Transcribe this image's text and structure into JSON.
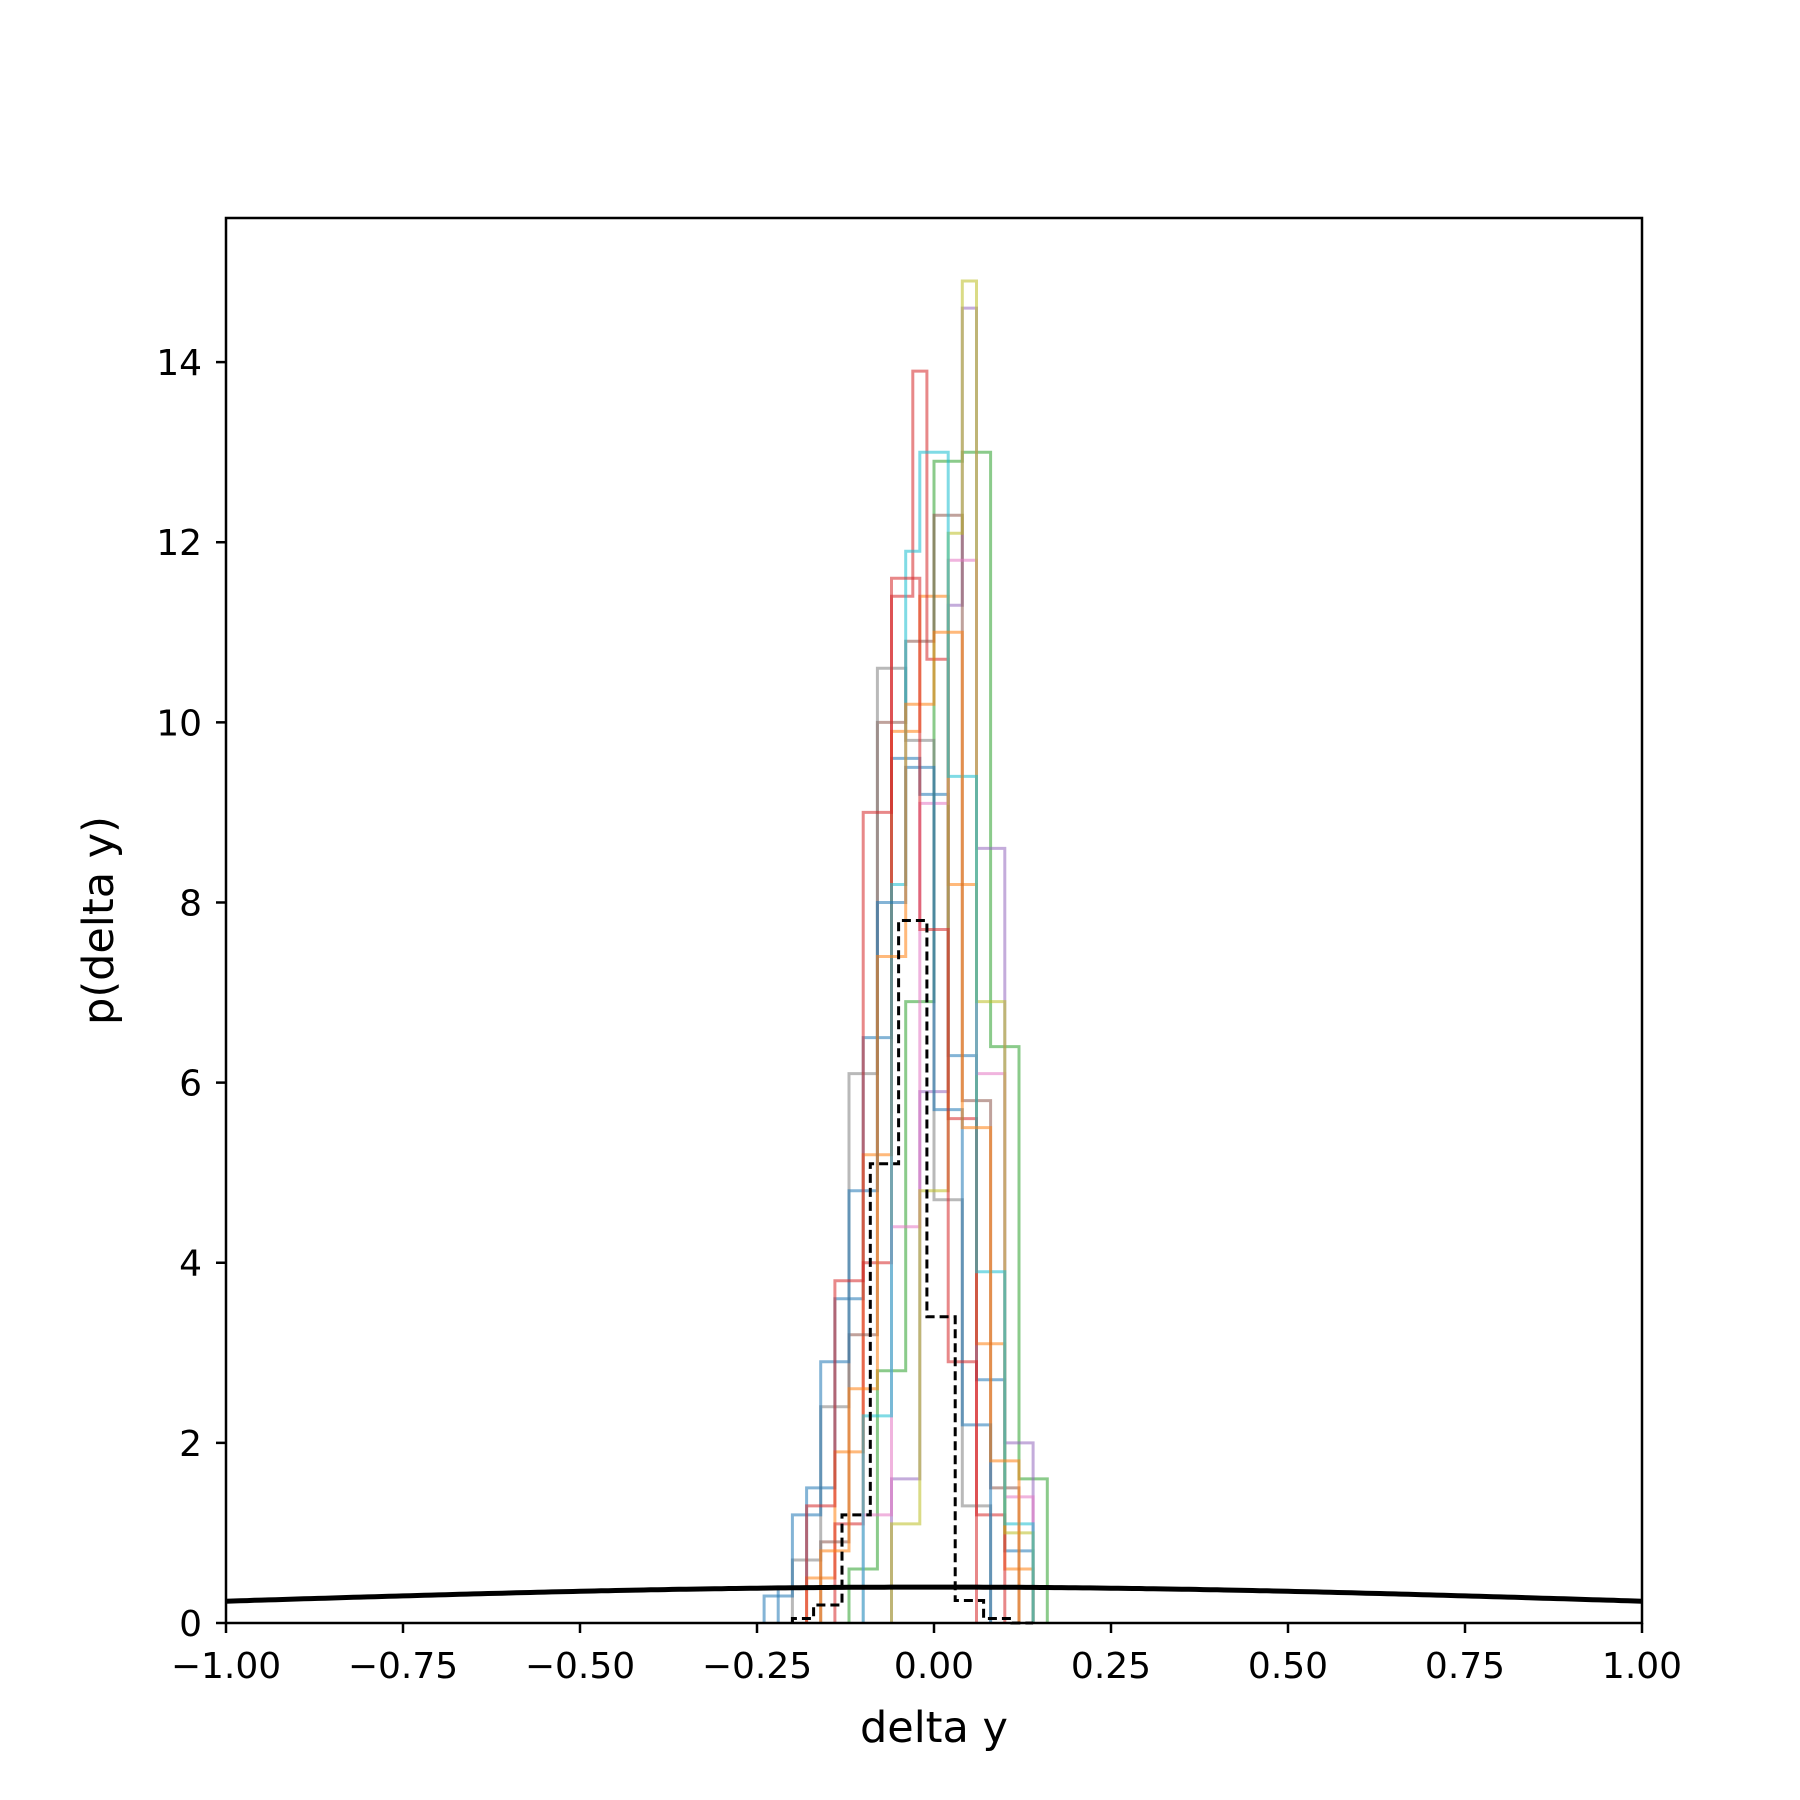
{
  "chart_data": {
    "type": "histogram",
    "title": "",
    "xlabel": "delta y",
    "ylabel": "p(delta y)",
    "xlim": [
      -1.0,
      1.0
    ],
    "ylim": [
      0,
      15.6
    ],
    "grid": false,
    "legend": "none",
    "x_ticks": [
      {
        "value": -1.0,
        "label": "−1.00"
      },
      {
        "value": -0.75,
        "label": "−0.75"
      },
      {
        "value": -0.5,
        "label": "−0.50"
      },
      {
        "value": -0.25,
        "label": "−0.25"
      },
      {
        "value": 0.0,
        "label": "0.00"
      },
      {
        "value": 0.25,
        "label": "0.25"
      },
      {
        "value": 0.5,
        "label": "0.50"
      },
      {
        "value": 0.75,
        "label": "0.75"
      },
      {
        "value": 1.0,
        "label": "1.00"
      }
    ],
    "y_ticks": [
      {
        "value": 0,
        "label": "0"
      },
      {
        "value": 2,
        "label": "2"
      },
      {
        "value": 4,
        "label": "4"
      },
      {
        "value": 6,
        "label": "6"
      },
      {
        "value": 8,
        "label": "8"
      },
      {
        "value": 10,
        "label": "10"
      },
      {
        "value": 12,
        "label": "12"
      },
      {
        "value": 14,
        "label": "14"
      }
    ],
    "series": [
      {
        "color": "#1f77b4",
        "edges": [
          -0.22,
          -0.18,
          -0.14,
          -0.1,
          -0.06,
          -0.02,
          0.02,
          0.06,
          0.1,
          0.14
        ],
        "values": [
          0.4,
          1.5,
          3.6,
          6.5,
          9.6,
          9.2,
          6.3,
          2.7,
          0.8
        ]
      },
      {
        "color": "#ff7f0e",
        "edges": [
          -0.18,
          -0.14,
          -0.1,
          -0.06,
          -0.02,
          0.02,
          0.06,
          0.1,
          0.14
        ],
        "values": [
          0.5,
          1.9,
          5.2,
          9.9,
          11.4,
          8.2,
          3.1,
          0.6
        ]
      },
      {
        "color": "#2ca02c",
        "edges": [
          -0.12,
          -0.08,
          -0.04,
          0.0,
          0.04,
          0.08,
          0.12,
          0.16
        ],
        "values": [
          0.6,
          2.8,
          6.9,
          12.9,
          13.0,
          6.4,
          1.6
        ]
      },
      {
        "color": "#d62728",
        "edges": [
          -0.14,
          -0.1,
          -0.06,
          -0.03,
          -0.01,
          0.02,
          0.06,
          0.1
        ],
        "values": [
          1.1,
          4.0,
          11.4,
          13.9,
          10.7,
          5.6,
          1.2
        ]
      },
      {
        "color": "#9467bd",
        "edges": [
          -0.06,
          -0.02,
          0.02,
          0.04,
          0.06,
          0.1,
          0.14
        ],
        "values": [
          1.6,
          5.9,
          11.3,
          14.6,
          8.6,
          2.0
        ]
      },
      {
        "color": "#8c564b",
        "edges": [
          -0.16,
          -0.12,
          -0.08,
          -0.04,
          0.0,
          0.04,
          0.08,
          0.12
        ],
        "values": [
          0.9,
          3.2,
          10.0,
          10.9,
          12.3,
          5.8,
          1.5
        ]
      },
      {
        "color": "#e377c2",
        "edges": [
          -0.1,
          -0.06,
          -0.02,
          0.02,
          0.06,
          0.1,
          0.14
        ],
        "values": [
          1.2,
          4.4,
          9.1,
          11.8,
          6.1,
          1.4
        ]
      },
      {
        "color": "#7f7f7f",
        "edges": [
          -0.2,
          -0.16,
          -0.12,
          -0.08,
          -0.04,
          0.0,
          0.04,
          0.08
        ],
        "values": [
          0.7,
          2.4,
          6.1,
          10.6,
          9.8,
          4.7,
          1.3
        ]
      },
      {
        "color": "#bcbd22",
        "edges": [
          -0.06,
          -0.02,
          0.02,
          0.04,
          0.06,
          0.1,
          0.14
        ],
        "values": [
          1.1,
          4.8,
          12.1,
          14.9,
          6.9,
          1.0
        ]
      },
      {
        "color": "#17becf",
        "edges": [
          -0.1,
          -0.06,
          -0.04,
          -0.02,
          0.02,
          0.06,
          0.1,
          0.14
        ],
        "values": [
          2.3,
          8.2,
          11.9,
          13.0,
          9.4,
          3.9,
          1.1
        ]
      },
      {
        "color": "#1f77b4",
        "edges": [
          -0.24,
          -0.2,
          -0.16,
          -0.12,
          -0.08,
          -0.04,
          0.0,
          0.04,
          0.08
        ],
        "values": [
          0.3,
          1.2,
          2.9,
          4.8,
          8.0,
          9.5,
          5.7,
          2.2
        ]
      },
      {
        "color": "#ff7f0e",
        "edges": [
          -0.16,
          -0.12,
          -0.08,
          -0.04,
          0.0,
          0.04,
          0.08,
          0.12
        ],
        "values": [
          0.8,
          2.6,
          7.4,
          10.2,
          11.0,
          5.5,
          1.8
        ]
      },
      {
        "color": "#d62728",
        "edges": [
          -0.18,
          -0.14,
          -0.1,
          -0.06,
          -0.02,
          0.02,
          0.06
        ],
        "values": [
          1.3,
          3.8,
          9.0,
          11.6,
          7.7,
          2.9
        ]
      }
    ],
    "aggregate": {
      "style": "dashed",
      "color": "#000000",
      "edges": [
        -0.2,
        -0.17,
        -0.13,
        -0.09,
        -0.05,
        -0.01,
        0.03,
        0.07,
        0.11,
        0.14
      ],
      "values": [
        0.05,
        0.2,
        1.2,
        5.1,
        7.8,
        3.4,
        0.25,
        0.05,
        0.0
      ]
    },
    "reference_curve": {
      "type": "normal_pdf",
      "mean": 0,
      "std": 1,
      "color": "#000000"
    }
  }
}
